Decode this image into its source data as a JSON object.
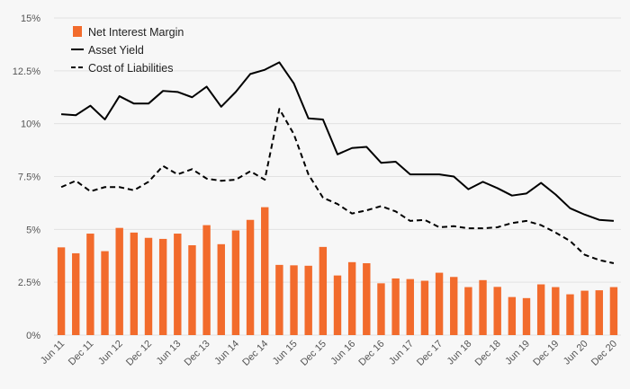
{
  "chart_data": {
    "type": "bar",
    "title": "",
    "xlabel": "",
    "ylabel": "",
    "ylim": [
      0,
      15
    ],
    "yticks": [
      "0%",
      "2.5%",
      "5%",
      "7.5%",
      "10%",
      "12.5%",
      "15%"
    ],
    "grid": "horizontal",
    "legend_position": "top-left",
    "colors": {
      "bar": "#f26b2c",
      "line": "#000000",
      "grid": "#e2e2e2",
      "background": "#f7f7f7"
    },
    "categories": [
      "Jun 11",
      "Sep 11",
      "Dec 11",
      "Mar 12",
      "Jun 12",
      "Sep 12",
      "Dec 12",
      "Mar 13",
      "Jun 13",
      "Sep 13",
      "Dec 13",
      "Mar 14",
      "Jun 14",
      "Sep 14",
      "Dec 14",
      "Mar 15",
      "Jun 15",
      "Sep 15",
      "Dec 15",
      "Mar 16",
      "Jun 16",
      "Sep 16",
      "Dec 16",
      "Mar 17",
      "Jun 17",
      "Sep 17",
      "Dec 17",
      "Mar 18",
      "Jun 18",
      "Sep 18",
      "Dec 18",
      "Mar 19",
      "Jun 19",
      "Sep 19",
      "Dec 19",
      "Mar 20",
      "Jun 20",
      "Sep 20",
      "Dec 20"
    ],
    "xtick_labels": [
      "Jun 11",
      "",
      "Dec 11",
      "",
      "Jun 12",
      "",
      "Dec 12",
      "",
      "Jun 13",
      "",
      "Dec 13",
      "",
      "Jun 14",
      "",
      "Dec 14",
      "",
      "Jun 15",
      "",
      "Dec 15",
      "",
      "Jun 16",
      "",
      "Dec 16",
      "",
      "Jun 17",
      "",
      "Dec 17",
      "",
      "Jun 18",
      "",
      "Dec 18",
      "",
      "Jun 19",
      "",
      "Dec 19",
      "",
      "Jun 20",
      "",
      "Dec 20"
    ],
    "series": [
      {
        "name": "Net Interest Margin",
        "kind": "bar",
        "values": [
          4.15,
          3.87,
          4.8,
          3.97,
          5.07,
          4.85,
          4.6,
          4.55,
          4.8,
          4.25,
          5.2,
          4.3,
          4.95,
          5.45,
          6.05,
          3.32,
          3.3,
          3.28,
          4.17,
          2.82,
          3.45,
          3.4,
          2.45,
          2.68,
          2.65,
          2.57,
          2.95,
          2.75,
          2.27,
          2.6,
          2.28,
          1.8,
          1.75,
          2.4,
          2.27,
          1.93,
          2.1,
          2.12,
          2.27
        ]
      },
      {
        "name": "Asset Yield",
        "kind": "line",
        "dash": "solid",
        "values": [
          10.45,
          10.4,
          10.85,
          10.2,
          11.3,
          10.95,
          10.95,
          11.55,
          11.5,
          11.25,
          11.75,
          10.8,
          11.5,
          12.35,
          12.55,
          12.9,
          11.9,
          10.25,
          10.2,
          8.55,
          8.85,
          8.9,
          8.15,
          8.2,
          7.6,
          7.6,
          7.6,
          7.5,
          6.9,
          7.25,
          6.95,
          6.6,
          6.7,
          7.2,
          6.65,
          6.0,
          5.7,
          5.45,
          5.4
        ]
      },
      {
        "name": "Cost of Liabilities",
        "kind": "line",
        "dash": "dashed",
        "values": [
          7.0,
          7.3,
          6.8,
          7.0,
          7.0,
          6.85,
          7.25,
          8.0,
          7.6,
          7.85,
          7.4,
          7.3,
          7.35,
          7.75,
          7.35,
          10.7,
          9.5,
          7.6,
          6.5,
          6.2,
          5.75,
          5.9,
          6.1,
          5.85,
          5.4,
          5.45,
          5.1,
          5.15,
          5.05,
          5.05,
          5.1,
          5.3,
          5.4,
          5.2,
          4.85,
          4.45,
          3.8,
          3.55,
          3.4
        ]
      }
    ]
  }
}
